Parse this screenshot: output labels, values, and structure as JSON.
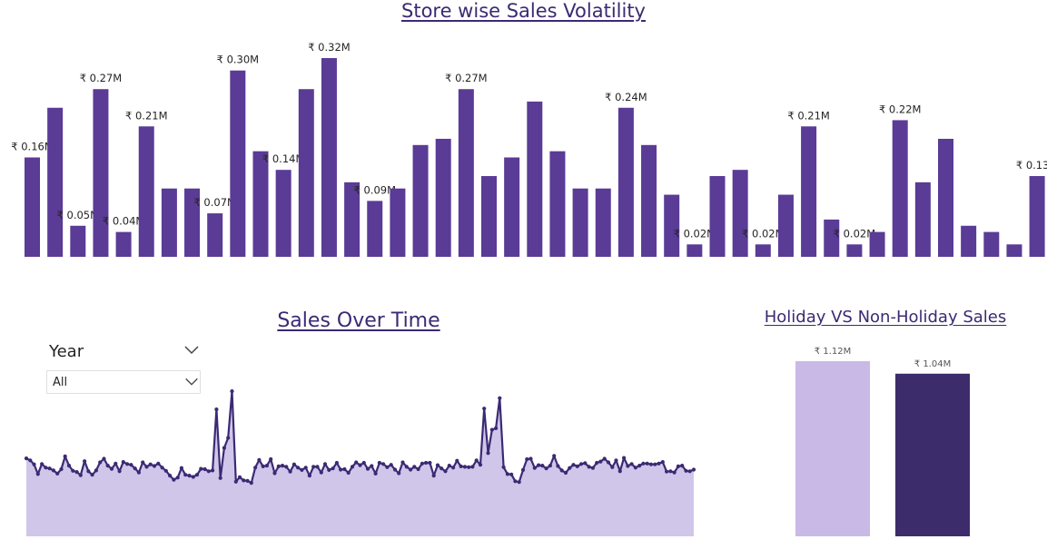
{
  "titles": {
    "volatility": "Store wise Sales Volatility",
    "over_time": "Sales Over Time",
    "holiday": "Holiday VS Non-Holiday Sales"
  },
  "slicer": {
    "label": "Year",
    "value": "All"
  },
  "colors": {
    "bar": "#5a3b96",
    "line": "#3b2a73",
    "area": "#d0c6ea",
    "holiday_bar": "#c9b9e6",
    "non_holiday_bar": "#3d2c6b"
  },
  "chart_data": [
    {
      "type": "bar",
      "title": "Store wise Sales Volatility",
      "values": [
        0.16,
        0.24,
        0.05,
        0.27,
        0.04,
        0.21,
        0.11,
        0.11,
        0.07,
        0.3,
        0.17,
        0.14,
        0.27,
        0.32,
        0.12,
        0.09,
        0.11,
        0.18,
        0.19,
        0.27,
        0.13,
        0.16,
        0.25,
        0.17,
        0.11,
        0.11,
        0.24,
        0.18,
        0.1,
        0.02,
        0.13,
        0.14,
        0.02,
        0.1,
        0.21,
        0.06,
        0.02,
        0.04,
        0.22,
        0.12,
        0.19,
        0.05,
        0.04,
        0.02,
        0.13
      ],
      "data_labels": [
        {
          "index": 0,
          "text": "₹ 0.16M"
        },
        {
          "index": 2,
          "text": "₹ 0.05M"
        },
        {
          "index": 3,
          "text": "₹ 0.27M"
        },
        {
          "index": 4,
          "text": "₹ 0.04M"
        },
        {
          "index": 5,
          "text": "₹ 0.21M"
        },
        {
          "index": 8,
          "text": "₹ 0.07M"
        },
        {
          "index": 9,
          "text": "₹ 0.30M"
        },
        {
          "index": 11,
          "text": "₹ 0.14M"
        },
        {
          "index": 13,
          "text": "₹ 0.32M"
        },
        {
          "index": 15,
          "text": "₹ 0.09M"
        },
        {
          "index": 19,
          "text": "₹ 0.27M"
        },
        {
          "index": 26,
          "text": "₹ 0.24M"
        },
        {
          "index": 29,
          "text": "₹ 0.02M"
        },
        {
          "index": 32,
          "text": "₹ 0.02M"
        },
        {
          "index": 34,
          "text": "₹ 0.21M"
        },
        {
          "index": 36,
          "text": "₹ 0.02M"
        },
        {
          "index": 38,
          "text": "₹ 0.22M"
        },
        {
          "index": 44,
          "text": "₹ 0.13M"
        }
      ],
      "ylim": [
        0,
        0.32
      ]
    },
    {
      "type": "area",
      "title": "Sales Over Time",
      "values": [
        49.4,
        48.9,
        47.9,
        45.5,
        48.0,
        47.1,
        46.9,
        46.4,
        45.6,
        46.7,
        49.9,
        47.6,
        46.3,
        46.0,
        45.2,
        48.7,
        46.2,
        45.3,
        46.4,
        48.4,
        49.3,
        47.6,
        46.8,
        48.1,
        46.2,
        48.5,
        48.0,
        47.8,
        46.9,
        45.9,
        48.4,
        47.3,
        47.9,
        47.5,
        48.1,
        47.1,
        46.3,
        45.1,
        44.1,
        44.6,
        47.0,
        45.3,
        45.1,
        44.8,
        45.3,
        46.8,
        46.7,
        46.2,
        46.4,
        61.6,
        44.5,
        52.0,
        54.5,
        66.1,
        43.6,
        44.7,
        43.9,
        43.8,
        43.3,
        47.1,
        49.0,
        47.4,
        47.6,
        49.2,
        45.7,
        47.4,
        47.6,
        47.3,
        46.1,
        47.9,
        47.1,
        46.5,
        47.1,
        45.1,
        47.3,
        47.3,
        45.9,
        48.0,
        46.5,
        46.9,
        48.3,
        46.6,
        46.7,
        45.8,
        47.3,
        48.4,
        47.7,
        48.3,
        46.8,
        47.5,
        45.6,
        48.3,
        48.0,
        47.2,
        47.8,
        46.6,
        45.7,
        48.4,
        47.3,
        46.6,
        47.3,
        46.7,
        48.1,
        48.3,
        48.3,
        45.1,
        47.7,
        46.9,
        46.2,
        47.6,
        47.1,
        48.8,
        47.4,
        47.3,
        47.2,
        47.3,
        48.9,
        47.8,
        61.8,
        50.7,
        56.5,
        56.9,
        64.4,
        47.2,
        45.5,
        45.4,
        43.7,
        43.5,
        46.5,
        49.2,
        49.3,
        47.0,
        47.7,
        47.6,
        46.9,
        47.6,
        50.0,
        47.5,
        46.4,
        45.8,
        47.0,
        47.8,
        47.4,
        48.0,
        48.2,
        47.3,
        47.0,
        48.3,
        48.6,
        49.3,
        48.4,
        47.2,
        48.9,
        46.2,
        49.5,
        47.5,
        48.0,
        47.1,
        47.6,
        48.1,
        48.1,
        47.9,
        47.9,
        48.1,
        48.5,
        46.1,
        46.2,
        45.9,
        47.4,
        47.6,
        46.3,
        46.2,
        46.6
      ],
      "ylim": [
        30,
        72
      ]
    },
    {
      "type": "bar",
      "title": "Holiday VS Non-Holiday Sales",
      "values": [
        1.12,
        1.04
      ],
      "data_labels": [
        "₹ 1.12M",
        "₹ 1.04M"
      ],
      "ylim": [
        0,
        1.12
      ]
    }
  ]
}
